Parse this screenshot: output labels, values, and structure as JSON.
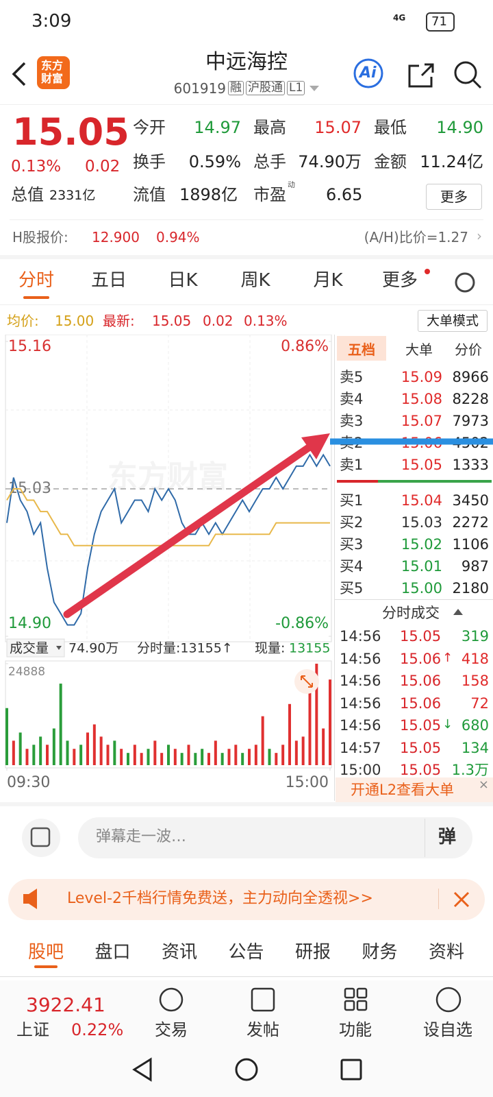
{
  "status": {
    "time": "3:09",
    "network": "4G",
    "battery": "71"
  },
  "header": {
    "logo": [
      "东方",
      "财富"
    ],
    "title": "中远海控",
    "code": "601919",
    "tags": [
      "融",
      "沪股通",
      "L1"
    ],
    "ai": "Ai"
  },
  "quote": {
    "price": "15.05",
    "change_pct": "0.13%",
    "change": "0.02",
    "fields": [
      {
        "label": "今开",
        "value": "14.97",
        "color": "#1f9a3a"
      },
      {
        "label": "最高",
        "value": "15.07",
        "color": "#e02a2a"
      },
      {
        "label": "最低",
        "value": "14.90",
        "color": "#1f9a3a"
      },
      {
        "label": "换手",
        "value": "0.59%",
        "color": "#222222"
      },
      {
        "label": "总手",
        "value": "74.90万",
        "color": "#222222"
      },
      {
        "label": "金额",
        "value": "11.24亿",
        "color": "#222222"
      }
    ],
    "stats": [
      {
        "label": "总值",
        "value": "2331亿"
      },
      {
        "label": "流值",
        "value": "1898亿"
      },
      {
        "label": "市盈",
        "superscript": "动",
        "value": "6.65"
      }
    ],
    "more": "更多"
  },
  "hshare": {
    "label": "H股报价:",
    "price": "12.900",
    "pct": "0.94%",
    "ratio": "(A/H)比价=1.27"
  },
  "tabs": [
    "分时",
    "五日",
    "日K",
    "周K",
    "月K",
    "更多"
  ],
  "summary": {
    "avg_label": "均价:",
    "avg": "15.00",
    "latest_label": "最新:",
    "latest": "15.05",
    "change": "0.02",
    "pct": "0.13%",
    "mode": "大单模式"
  },
  "chart_data": {
    "type": "line",
    "watermark": "东方财富",
    "xlim": [
      0,
      240
    ],
    "xticks": [
      {
        "value": 0,
        "label": "09:30"
      },
      {
        "value": 240,
        "label": "15:00"
      }
    ],
    "ylim": [
      14.9,
      15.16
    ],
    "yticks": [
      15.16,
      15.03,
      {
        "value": 14.9,
        "label": "14.90"
      }
    ],
    "ytick_colors": [
      "#d83030",
      "#777777",
      "#1f9a3a"
    ],
    "reference_line": {
      "value": 15.03,
      "dashed": true
    },
    "y2lim": [
      -0.86,
      0.86
    ],
    "y2ticks": [
      {
        "value": 0.86,
        "label": "0.86%"
      },
      {
        "value": -0.86,
        "label": "-0.86%"
      }
    ],
    "y2tick_colors": [
      "#d83030",
      "#1f9a3a"
    ],
    "x": [
      0,
      5,
      10,
      15,
      20,
      25,
      30,
      35,
      40,
      45,
      50,
      55,
      60,
      65,
      70,
      75,
      80,
      85,
      90,
      95,
      100,
      105,
      110,
      115,
      120,
      125,
      130,
      135,
      140,
      145,
      150,
      155,
      160,
      165,
      170,
      175,
      180,
      185,
      190,
      195,
      200,
      205,
      210,
      215,
      220,
      225,
      230,
      235,
      240
    ],
    "series": [
      {
        "color": "#2f6aa8",
        "values": [
          15.0,
          15.04,
          15.02,
          15.01,
          14.99,
          15.0,
          14.96,
          14.93,
          14.92,
          14.91,
          14.91,
          14.92,
          14.96,
          14.99,
          15.01,
          15.02,
          15.03,
          15.0,
          15.01,
          15.02,
          15.02,
          15.01,
          15.03,
          15.02,
          15.03,
          15.02,
          15.0,
          14.99,
          14.99,
          15.0,
          14.99,
          15.0,
          14.99,
          15.0,
          15.01,
          15.02,
          15.01,
          15.02,
          15.03,
          15.03,
          15.04,
          15.03,
          15.04,
          15.05,
          15.05,
          15.06,
          15.05,
          15.06,
          15.05
        ]
      },
      {
        "color": "#e8b84a",
        "values": [
          15.02,
          15.03,
          15.03,
          15.02,
          15.02,
          15.01,
          15.01,
          15.0,
          14.99,
          14.99,
          14.98,
          14.98,
          14.98,
          14.98,
          14.98,
          14.98,
          14.98,
          14.98,
          14.98,
          14.98,
          14.98,
          14.98,
          14.98,
          14.98,
          14.98,
          14.98,
          14.98,
          14.98,
          14.98,
          14.98,
          14.98,
          14.99,
          14.99,
          14.99,
          14.99,
          14.99,
          14.99,
          14.99,
          14.99,
          14.99,
          15.0,
          15.0,
          15.0,
          15.0,
          15.0,
          15.0,
          15.0,
          15.0,
          15.0
        ]
      }
    ],
    "volume_legend": {
      "button": "成交量",
      "total": "74.90万",
      "period_label": "分时量:13155↑",
      "now_label": "现量:",
      "now": "13155"
    },
    "volume": {
      "ylim": [
        0,
        24888
      ],
      "yticks": [
        24888
      ],
      "up_color": "#e03030",
      "down_color": "#2a9d3a",
      "values": [
        14000,
        6000,
        8000,
        4000,
        5000,
        7000,
        5000,
        9000,
        20000,
        6000,
        4000,
        5000,
        8000,
        10000,
        7000,
        5000,
        6000,
        4000,
        3000,
        5000,
        3000,
        4000,
        6000,
        3000,
        5000,
        4000,
        3000,
        5000,
        3000,
        4000,
        3000,
        6000,
        3000,
        4000,
        5000,
        3000,
        4000,
        5000,
        12000,
        4000,
        3000,
        5000,
        15000,
        6000,
        7000,
        20000,
        24888,
        9000,
        21000
      ],
      "rising": [
        false,
        true,
        false,
        true,
        false,
        false,
        true,
        false,
        false,
        false,
        true,
        false,
        true,
        true,
        true,
        true,
        false,
        true,
        false,
        true,
        true,
        false,
        true,
        true,
        false,
        true,
        false,
        true,
        false,
        false,
        true,
        true,
        false,
        true,
        true,
        false,
        true,
        true,
        true,
        false,
        true,
        true,
        true,
        true,
        true,
        true,
        true,
        true,
        true
      ]
    }
  },
  "orderbook": {
    "tabs": [
      "五档",
      "大单",
      "分价"
    ],
    "asks": [
      {
        "label": "卖5",
        "price": "15.09",
        "volume": "8966",
        "color": "#e02a2a"
      },
      {
        "label": "卖4",
        "price": "15.08",
        "volume": "8228",
        "color": "#e02a2a"
      },
      {
        "label": "卖3",
        "price": "15.07",
        "volume": "7973",
        "color": "#e02a2a"
      },
      {
        "label": "卖2",
        "price": "15.06",
        "volume": "4502",
        "color": "#e02a2a"
      },
      {
        "label": "卖1",
        "price": "15.05",
        "volume": "1333",
        "color": "#e02a2a"
      }
    ],
    "bids": [
      {
        "label": "买1",
        "price": "15.04",
        "volume": "3450",
        "color": "#e02a2a"
      },
      {
        "label": "买2",
        "price": "15.03",
        "volume": "2272",
        "color": "#333333"
      },
      {
        "label": "买3",
        "price": "15.02",
        "volume": "1106",
        "color": "#1f9a3a"
      },
      {
        "label": "买4",
        "price": "15.01",
        "volume": "987",
        "color": "#1f9a3a"
      },
      {
        "label": "买5",
        "price": "15.00",
        "volume": "2180",
        "color": "#1f9a3a"
      }
    ],
    "trades_title": "分时成交",
    "trades": [
      {
        "time": "14:56",
        "price": "15.05",
        "volume": "319",
        "volume_color": "#1f9a3a"
      },
      {
        "time": "14:56",
        "price": "15.06",
        "flag": "↑",
        "volume": "418",
        "volume_color": "#e02a2a"
      },
      {
        "time": "14:56",
        "price": "15.06",
        "volume": "158",
        "volume_color": "#e02a2a"
      },
      {
        "time": "14:56",
        "price": "15.06",
        "volume": "72",
        "volume_color": "#e02a2a"
      },
      {
        "time": "14:56",
        "price": "15.05",
        "flag": "↓",
        "volume": "680",
        "volume_color": "#1f9a3a"
      },
      {
        "time": "14:57",
        "price": "15.05",
        "volume": "134",
        "volume_color": "#1f9a3a"
      },
      {
        "time": "15:00",
        "price": "15.05",
        "volume": "1.3万",
        "volume_color": "#1f9a3a"
      }
    ],
    "banner": "开通L2查看大单"
  },
  "comment": {
    "placeholder": "弹幕走一波…",
    "button": "弹"
  },
  "promo": "Level-2千档行情免费送，主力动向全透视>>",
  "section_tabs": [
    "股吧",
    "盘口",
    "资讯",
    "公告",
    "研报",
    "财务",
    "资料"
  ],
  "bottom": {
    "index_value": "3922.41",
    "index_name": "上证",
    "index_pct": "0.22%",
    "nav": [
      "交易",
      "发帖",
      "功能",
      "设自选"
    ]
  }
}
